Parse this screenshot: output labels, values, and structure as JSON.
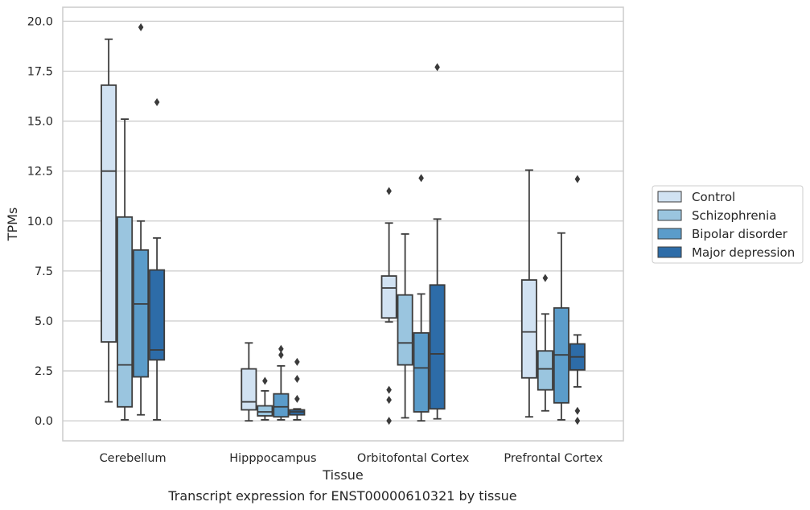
{
  "chart_data": {
    "type": "box",
    "xlabel": "Tissue",
    "ylabel": "TPMs",
    "caption": "Transcript expression for ENST00000610321 by tissue",
    "ylim": [
      -1,
      20.7
    ],
    "yticks": [
      0.0,
      2.5,
      5.0,
      7.5,
      10.0,
      12.5,
      15.0,
      17.5,
      20.0
    ],
    "ytick_labels": [
      "0.0",
      "2.5",
      "5.0",
      "7.5",
      "10.0",
      "12.5",
      "15.0",
      "17.5",
      "20.0"
    ],
    "grid": "horizontal",
    "legend_position": "right",
    "categories": [
      "Cerebellum",
      "Hipppocampus",
      "Orbitofontal Cortex",
      "Prefrontal Cortex"
    ],
    "series": [
      {
        "name": "Control",
        "color": "#d1e2f2",
        "boxes": [
          {
            "whislo": 0.95,
            "q1": 3.95,
            "med": 12.5,
            "q3": 16.8,
            "whishi": 19.1,
            "fliers": []
          },
          {
            "whislo": 0.0,
            "q1": 0.55,
            "med": 0.95,
            "q3": 2.6,
            "whishi": 3.9,
            "fliers": []
          },
          {
            "whislo": 4.95,
            "q1": 5.15,
            "med": 6.65,
            "q3": 7.25,
            "whishi": 9.9,
            "fliers": [
              11.5,
              1.55,
              1.05,
              0.0
            ]
          },
          {
            "whislo": 0.2,
            "q1": 2.15,
            "med": 4.45,
            "q3": 7.05,
            "whishi": 12.55,
            "fliers": []
          }
        ]
      },
      {
        "name": "Schizophrenia",
        "color": "#9ac5df",
        "boxes": [
          {
            "whislo": 0.05,
            "q1": 0.7,
            "med": 2.8,
            "q3": 10.2,
            "whishi": 15.1,
            "fliers": []
          },
          {
            "whislo": 0.05,
            "q1": 0.25,
            "med": 0.45,
            "q3": 0.75,
            "whishi": 1.5,
            "fliers": [
              2.0
            ]
          },
          {
            "whislo": 0.15,
            "q1": 2.8,
            "med": 3.9,
            "q3": 6.3,
            "whishi": 9.35,
            "fliers": []
          },
          {
            "whislo": 0.5,
            "q1": 1.55,
            "med": 2.6,
            "q3": 3.5,
            "whishi": 5.35,
            "fliers": [
              7.15
            ]
          }
        ]
      },
      {
        "name": "Bipolar disorder",
        "color": "#5b9cca",
        "boxes": [
          {
            "whislo": 0.3,
            "q1": 2.2,
            "med": 5.85,
            "q3": 8.55,
            "whishi": 10.0,
            "fliers": [
              19.7
            ]
          },
          {
            "whislo": 0.05,
            "q1": 0.2,
            "med": 0.7,
            "q3": 1.35,
            "whishi": 2.75,
            "fliers": [
              3.6,
              3.3
            ]
          },
          {
            "whislo": 0.0,
            "q1": 0.45,
            "med": 2.65,
            "q3": 4.4,
            "whishi": 6.35,
            "fliers": [
              12.15
            ]
          },
          {
            "whislo": 0.05,
            "q1": 0.9,
            "med": 3.3,
            "q3": 5.65,
            "whishi": 9.4,
            "fliers": []
          }
        ]
      },
      {
        "name": "Major depression",
        "color": "#2d6ca8",
        "boxes": [
          {
            "whislo": 0.05,
            "q1": 3.05,
            "med": 3.55,
            "q3": 7.55,
            "whishi": 9.15,
            "fliers": [
              15.95
            ]
          },
          {
            "whislo": 0.05,
            "q1": 0.3,
            "med": 0.45,
            "q3": 0.55,
            "whishi": 0.6,
            "fliers": [
              2.95,
              2.1,
              1.1
            ]
          },
          {
            "whislo": 0.1,
            "q1": 0.6,
            "med": 3.35,
            "q3": 6.8,
            "whishi": 10.1,
            "fliers": [
              17.7
            ]
          },
          {
            "whislo": 1.7,
            "q1": 2.55,
            "med": 3.2,
            "q3": 3.85,
            "whishi": 4.3,
            "fliers": [
              12.1,
              0.5,
              0.0
            ]
          }
        ]
      }
    ]
  }
}
